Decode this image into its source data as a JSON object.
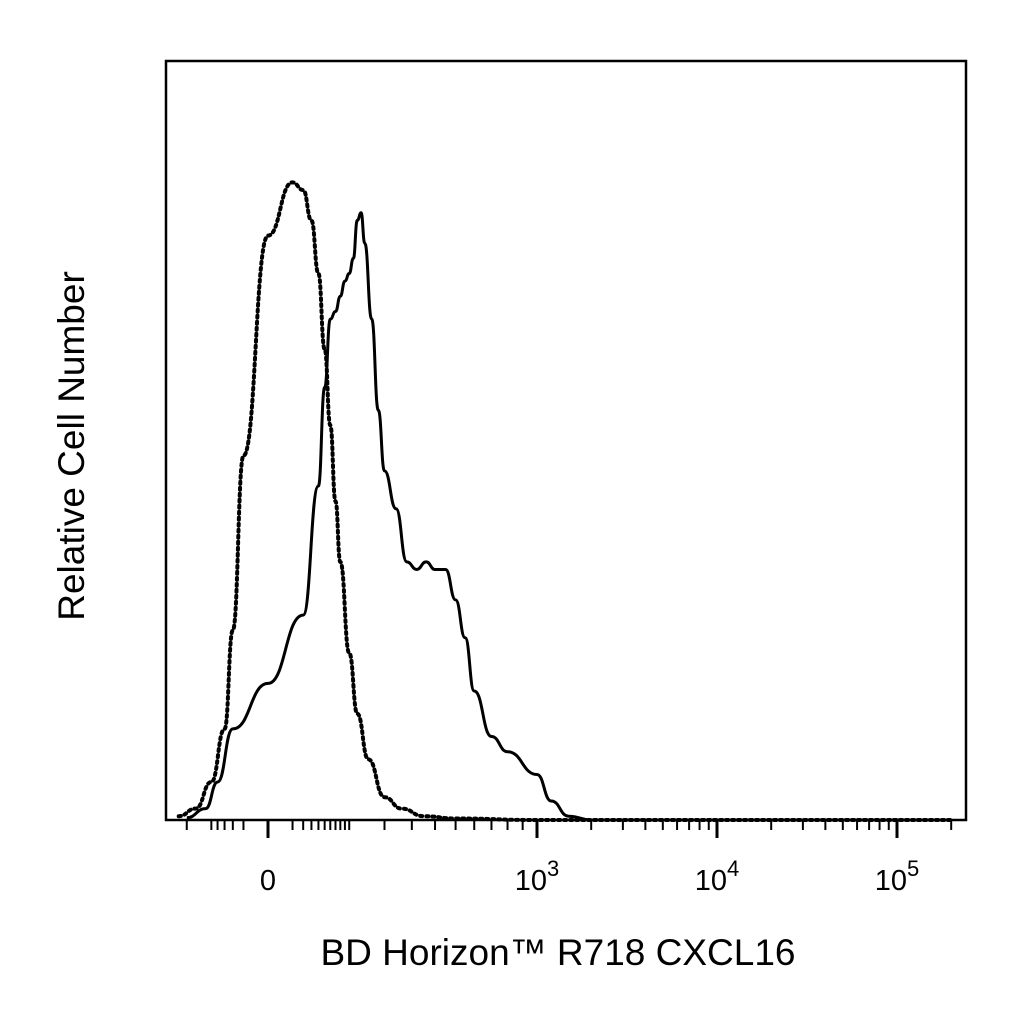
{
  "chart_data": {
    "type": "line",
    "title": "",
    "xlabel": "BD Horizon™ R718 CXCL16",
    "ylabel": "Relative Cell Number",
    "x_scale": "biexponential",
    "x_tick_labels": [
      {
        "base": "0",
        "exp": ""
      },
      {
        "base": "10",
        "exp": "3"
      },
      {
        "base": "10",
        "exp": "4"
      },
      {
        "base": "10",
        "exp": "5"
      }
    ],
    "xlim": [
      -200,
      200000
    ],
    "ylim": [
      0,
      100
    ],
    "grid": false,
    "legend": "none",
    "colors": {
      "line": "#000000",
      "frame": "#000000",
      "background": "#ffffff"
    },
    "series": [
      {
        "style": "dotted",
        "x": [
          -200,
          -120,
          -80,
          -50,
          -30,
          -20,
          -10,
          0,
          10,
          20,
          30,
          40,
          50,
          60,
          70,
          80,
          100,
          120,
          150,
          200,
          260,
          350,
          500,
          1000,
          10000,
          200000
        ],
        "y": [
          0,
          0.5,
          1.5,
          5,
          12,
          25,
          48,
          77,
          84,
          83,
          79,
          72,
          62,
          52,
          42,
          34,
          22,
          14,
          8,
          3,
          1.5,
          0.5,
          0.2,
          0,
          0,
          0
        ]
      },
      {
        "style": "solid",
        "x": [
          -200,
          -100,
          -60,
          -40,
          -20,
          0,
          20,
          40,
          50,
          60,
          70,
          80,
          90,
          100,
          110,
          120,
          130,
          140,
          160,
          180,
          200,
          240,
          280,
          320,
          360,
          400,
          450,
          500,
          550,
          600,
          700,
          800,
          1000,
          1200,
          1500,
          2000,
          10000,
          200000
        ],
        "y": [
          0,
          0.3,
          1.5,
          5,
          12,
          18,
          27,
          44,
          57,
          66,
          67,
          69,
          71,
          72,
          74,
          79,
          80,
          76,
          66,
          54,
          46,
          41,
          34,
          33,
          34,
          33,
          33,
          29,
          24,
          17,
          11,
          9,
          6,
          2.5,
          0.5,
          0,
          0,
          0
        ]
      }
    ]
  }
}
